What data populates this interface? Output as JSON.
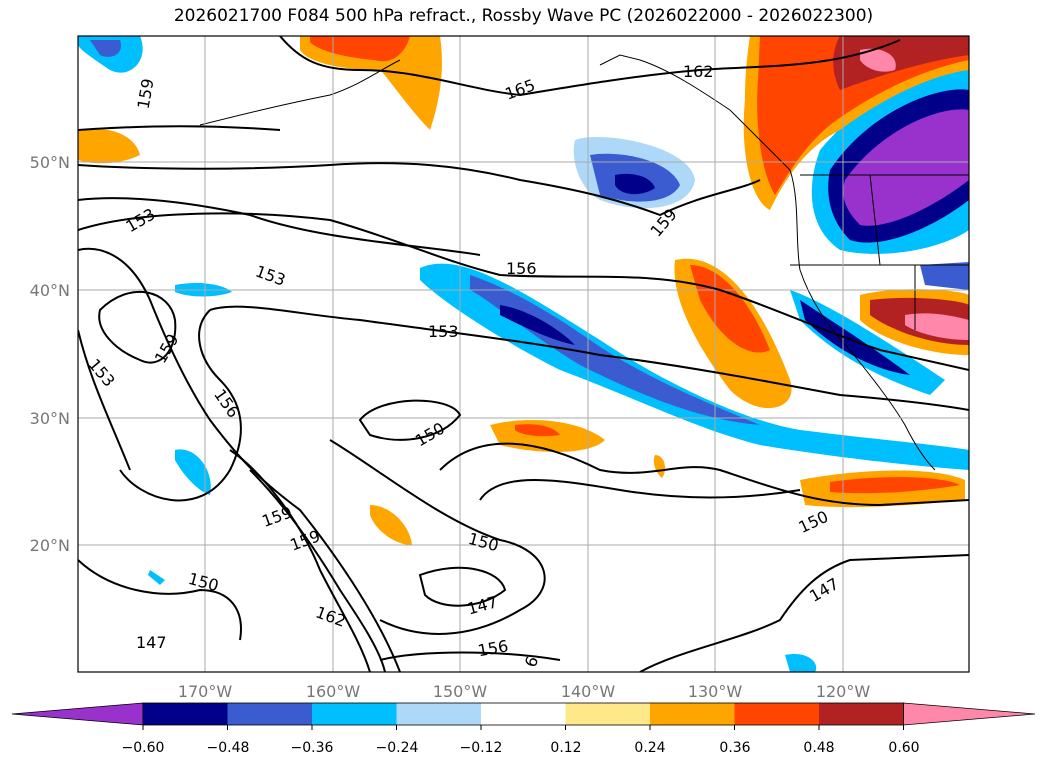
{
  "title": "2026021700 F084 500 hPa refract., Rossby Wave PC (2026022000 - 2026022300)",
  "lon_labels": [
    "170°W",
    "160°W",
    "150°W",
    "140°W",
    "130°W",
    "120°W"
  ],
  "lat_labels": [
    "50°N",
    "40°N",
    "30°N",
    "20°N"
  ],
  "contour_labels": [
    "159",
    "165",
    "162",
    "153",
    "153",
    "156",
    "159",
    "153",
    "159",
    "153",
    "156",
    "150",
    "159",
    "159",
    "150",
    "150",
    "147",
    "162",
    "156",
    "150",
    "147",
    "6"
  ],
  "colorbar": {
    "ticks": [
      "−0.60",
      "−0.48",
      "−0.36",
      "−0.24",
      "−0.12",
      "0.12",
      "0.24",
      "0.36",
      "0.48",
      "0.60"
    ],
    "colors": [
      "#9932cc",
      "#00008b",
      "#3b5bd1",
      "#00bfff",
      "#add8f7",
      "#ffffff",
      "#ffe88a",
      "#ffa500",
      "#ff4500",
      "#b22222",
      "#ff88aa"
    ]
  },
  "colors": {
    "grid": "#aaaaaa",
    "contour": "#000000",
    "tick_label": "#777777"
  }
}
